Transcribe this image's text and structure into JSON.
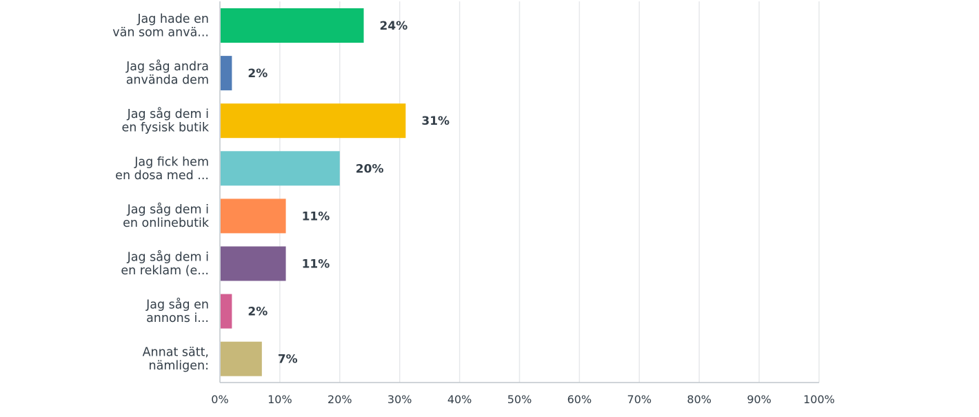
{
  "chart_data": {
    "type": "bar",
    "orientation": "horizontal",
    "categories": [
      [
        "Jag hade en",
        "vän som anvä..."
      ],
      [
        "Jag såg andra",
        "använda dem"
      ],
      [
        "Jag såg dem i",
        "en fysisk butik"
      ],
      [
        "Jag fick hem",
        "en dosa med ..."
      ],
      [
        "Jag såg dem i",
        "en onlinebutik"
      ],
      [
        "Jag såg dem i",
        "en reklam (e..."
      ],
      [
        "Jag såg en",
        "annons i..."
      ],
      [
        "Annat sätt,",
        "nämligen:"
      ]
    ],
    "values": [
      24,
      2,
      31,
      20,
      11,
      11,
      2,
      7
    ],
    "value_labels": [
      "24%",
      "2%",
      "31%",
      "20%",
      "11%",
      "11%",
      "2%",
      "7%"
    ],
    "colors": [
      "#0bbf6f",
      "#507cb6",
      "#f7bd00",
      "#6dc8cc",
      "#ff8b4f",
      "#7d5e90",
      "#d35f91",
      "#c7b879"
    ],
    "xlim": [
      0,
      100
    ],
    "x_ticks": [
      "0%",
      "10%",
      "20%",
      "30%",
      "40%",
      "50%",
      "60%",
      "70%",
      "80%",
      "90%",
      "100%"
    ],
    "grid": true,
    "legend": "none"
  }
}
